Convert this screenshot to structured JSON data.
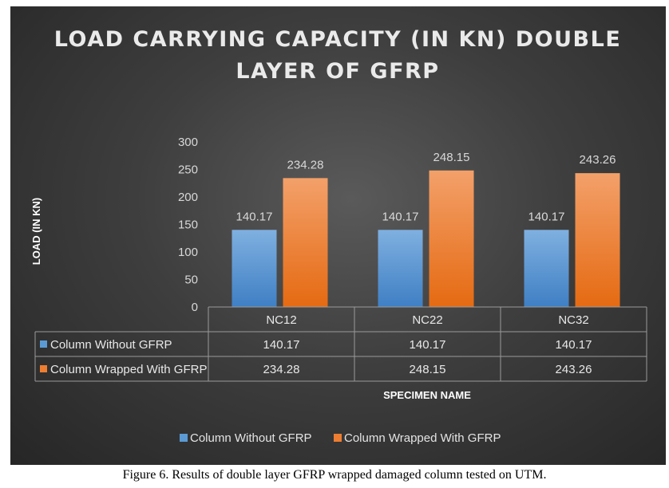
{
  "chart_data": {
    "type": "bar",
    "title_lines": [
      "LOAD CARRYING CAPACITY (IN KN) DOUBLE",
      "LAYER OF GFRP"
    ],
    "ylabel": "LOAD (IN KN)",
    "xlabel": "SPECIMEN NAME",
    "ylim": [
      0,
      300
    ],
    "yticks": [
      0,
      50,
      100,
      150,
      200,
      250,
      300
    ],
    "categories": [
      "NC12",
      "NC22",
      "NC32"
    ],
    "series": [
      {
        "name": "Column Without GFRP",
        "values": [
          140.17,
          140.17,
          140.17
        ],
        "labels": [
          "140.17",
          "140.17",
          "140.17"
        ],
        "color": "#5b9bd5"
      },
      {
        "name": "Column Wrapped With GFRP",
        "values": [
          234.28,
          248.15,
          243.26
        ],
        "labels": [
          "234.28",
          "248.15",
          "243.26"
        ],
        "color": "#ed7d31"
      }
    ],
    "legend_position": "bottom"
  },
  "caption": "Figure 6. Results of double layer GFRP wrapped damaged column tested on UTM."
}
